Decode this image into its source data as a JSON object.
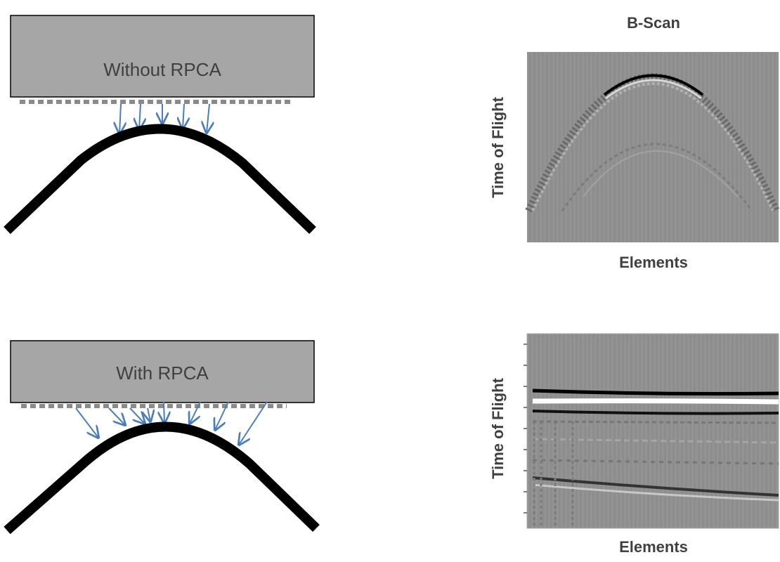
{
  "bscan_title": "B-Scan",
  "panels": [
    {
      "label": "Without RPCA",
      "y_label": "Time of Flight",
      "x_label": "Elements"
    },
    {
      "label": "With RPCA",
      "y_label": "Time of Flight",
      "x_label": "Elements"
    }
  ]
}
